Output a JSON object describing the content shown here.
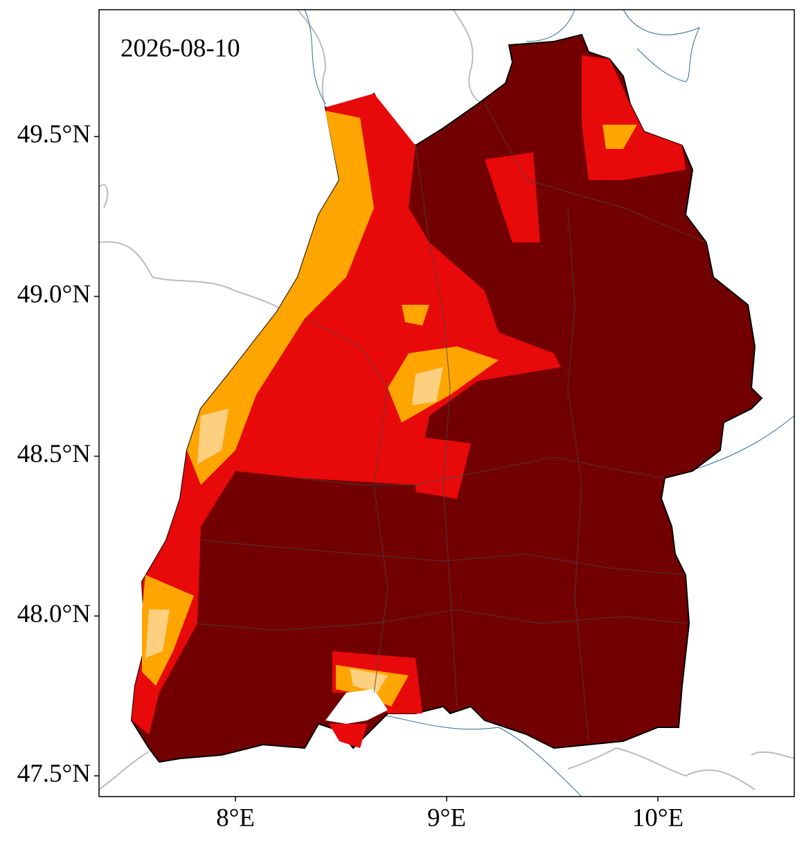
{
  "map": {
    "label": "2026-08-10",
    "xlim": [
      7.354,
      10.646
    ],
    "ylim": [
      47.435,
      49.897
    ],
    "xticks": [
      {
        "value": 8,
        "label": "8°E"
      },
      {
        "value": 9,
        "label": "9°E"
      },
      {
        "value": 10,
        "label": "10°E"
      }
    ],
    "yticks": [
      {
        "value": 47.5,
        "label": "47.5°N"
      },
      {
        "value": 48.0,
        "label": "48.0°N"
      },
      {
        "value": 48.5,
        "label": "48.5°N"
      },
      {
        "value": 49.0,
        "label": "49.0°N"
      },
      {
        "value": 49.5,
        "label": "49.5°N"
      }
    ]
  }
}
